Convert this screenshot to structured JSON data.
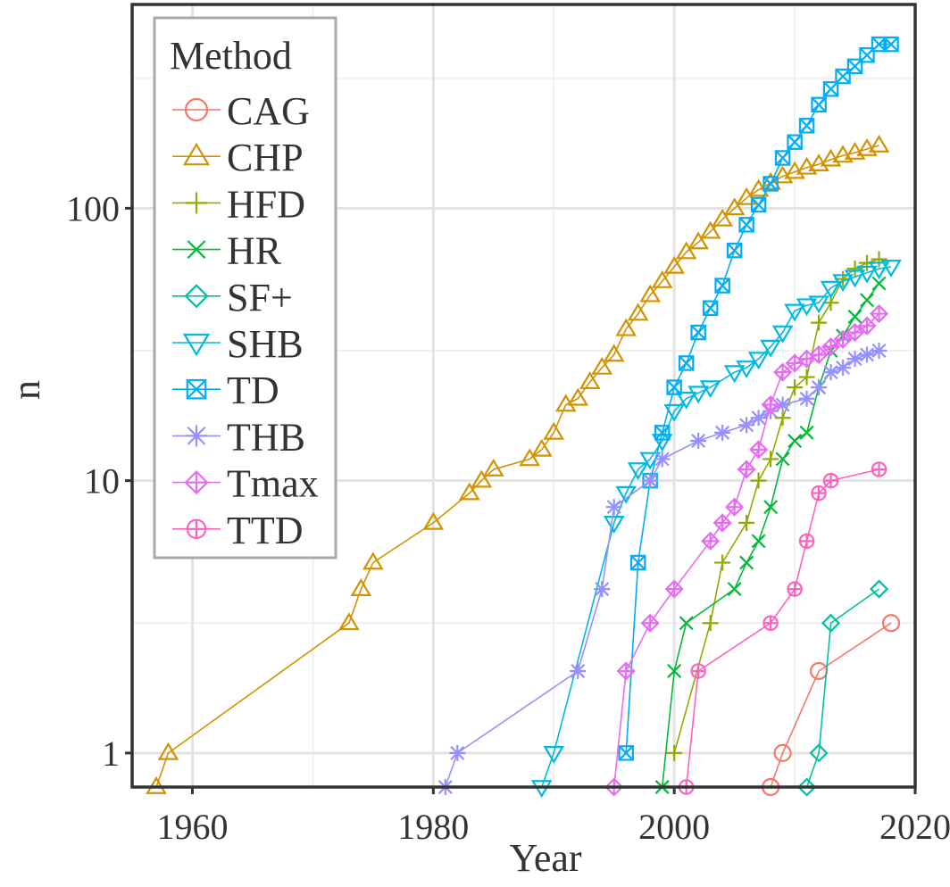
{
  "chart_data": {
    "type": "line",
    "xlabel": "Year",
    "ylabel": "n",
    "y_scale": "log",
    "xlim": [
      1955,
      2020
    ],
    "ylim": [
      0.75,
      560
    ],
    "x_ticks": [
      1960,
      1980,
      2000,
      2020
    ],
    "x_tick_labels": [
      "1960",
      "1980",
      "2000",
      "2020"
    ],
    "y_ticks": [
      1,
      10,
      100
    ],
    "y_tick_labels": [
      "1",
      "10",
      "100"
    ],
    "y_minor_ticks": [
      3,
      30,
      300
    ],
    "grid": true,
    "legend": {
      "title": "Method",
      "position": "top-left"
    },
    "series": [
      {
        "name": "CAG",
        "color": "#F8766D",
        "marker": "circle",
        "points": [
          [
            2008,
            0.75
          ],
          [
            2009,
            1
          ],
          [
            2012,
            2
          ],
          [
            2018,
            3
          ]
        ]
      },
      {
        "name": "CHP",
        "color": "#D39200",
        "marker": "triangle-up",
        "points": [
          [
            1957,
            0.75
          ],
          [
            1958,
            1
          ],
          [
            1973,
            3
          ],
          [
            1974,
            4
          ],
          [
            1975,
            5
          ],
          [
            1980,
            7
          ],
          [
            1983,
            9
          ],
          [
            1984,
            10
          ],
          [
            1985,
            11
          ],
          [
            1988,
            12
          ],
          [
            1989,
            13
          ],
          [
            1990,
            15
          ],
          [
            1991,
            19
          ],
          [
            1992,
            20
          ],
          [
            1993,
            23
          ],
          [
            1994,
            26
          ],
          [
            1995,
            29
          ],
          [
            1996,
            36
          ],
          [
            1997,
            41
          ],
          [
            1998,
            48
          ],
          [
            1999,
            54
          ],
          [
            2000,
            61
          ],
          [
            2001,
            69
          ],
          [
            2002,
            75
          ],
          [
            2003,
            82
          ],
          [
            2004,
            91
          ],
          [
            2005,
            100
          ],
          [
            2006,
            109
          ],
          [
            2007,
            117
          ],
          [
            2008,
            124
          ],
          [
            2009,
            131
          ],
          [
            2010,
            136
          ],
          [
            2011,
            141
          ],
          [
            2012,
            145
          ],
          [
            2013,
            151
          ],
          [
            2014,
            156
          ],
          [
            2015,
            160
          ],
          [
            2016,
            165
          ],
          [
            2017,
            170
          ]
        ]
      },
      {
        "name": "HFD",
        "color": "#93AA00",
        "marker": "plus",
        "points": [
          [
            2000,
            1
          ],
          [
            2003,
            3
          ],
          [
            2004,
            5
          ],
          [
            2006,
            7
          ],
          [
            2007,
            10
          ],
          [
            2008,
            12
          ],
          [
            2009,
            17
          ],
          [
            2010,
            22
          ],
          [
            2011,
            24
          ],
          [
            2012,
            38
          ],
          [
            2013,
            45
          ],
          [
            2014,
            55
          ],
          [
            2015,
            60
          ],
          [
            2016,
            63
          ],
          [
            2017,
            65
          ]
        ]
      },
      {
        "name": "HR",
        "color": "#00BA38",
        "marker": "x",
        "points": [
          [
            1999,
            0.75
          ],
          [
            2000,
            2
          ],
          [
            2001,
            3
          ],
          [
            2005,
            4
          ],
          [
            2006,
            5
          ],
          [
            2007,
            6
          ],
          [
            2008,
            8
          ],
          [
            2009,
            12
          ],
          [
            2010,
            14
          ],
          [
            2011,
            15
          ],
          [
            2012,
            22
          ],
          [
            2013,
            30
          ],
          [
            2014,
            34
          ],
          [
            2015,
            40
          ],
          [
            2016,
            46
          ],
          [
            2017,
            53
          ]
        ]
      },
      {
        "name": "SF+",
        "color": "#00C19F",
        "marker": "diamond",
        "points": [
          [
            2011,
            0.75
          ],
          [
            2012,
            1
          ],
          [
            2013,
            3
          ],
          [
            2017,
            4
          ]
        ]
      },
      {
        "name": "SHB",
        "color": "#00B9E3",
        "marker": "triangle-down",
        "points": [
          [
            1989,
            0.75
          ],
          [
            1990,
            1
          ],
          [
            1995,
            7
          ],
          [
            1996,
            9
          ],
          [
            1997,
            11
          ],
          [
            1998,
            12
          ],
          [
            1999,
            14
          ],
          [
            2000,
            18
          ],
          [
            2001,
            20
          ],
          [
            2002,
            21
          ],
          [
            2003,
            22
          ],
          [
            2005,
            25
          ],
          [
            2006,
            26
          ],
          [
            2007,
            28
          ],
          [
            2008,
            31
          ],
          [
            2009,
            35
          ],
          [
            2010,
            42
          ],
          [
            2011,
            44
          ],
          [
            2012,
            45
          ],
          [
            2013,
            51
          ],
          [
            2014,
            54
          ],
          [
            2015,
            56
          ],
          [
            2016,
            58
          ],
          [
            2017,
            60
          ],
          [
            2018,
            61
          ]
        ]
      },
      {
        "name": "TD",
        "color": "#00ADFA",
        "marker": "square-x",
        "points": [
          [
            1996,
            1
          ],
          [
            1997,
            5
          ],
          [
            1998,
            10
          ],
          [
            1999,
            15
          ],
          [
            2000,
            22
          ],
          [
            2001,
            27
          ],
          [
            2002,
            35
          ],
          [
            2003,
            43
          ],
          [
            2004,
            52
          ],
          [
            2005,
            70
          ],
          [
            2006,
            87
          ],
          [
            2007,
            103
          ],
          [
            2008,
            123
          ],
          [
            2009,
            153
          ],
          [
            2010,
            175
          ],
          [
            2011,
            201
          ],
          [
            2012,
            240
          ],
          [
            2013,
            274
          ],
          [
            2014,
            305
          ],
          [
            2015,
            332
          ],
          [
            2016,
            365
          ],
          [
            2017,
            400
          ],
          [
            2018,
            400
          ]
        ]
      },
      {
        "name": "THB",
        "color": "#9590FF",
        "marker": "asterisk",
        "points": [
          [
            1981,
            0.75
          ],
          [
            1982,
            1
          ],
          [
            1992,
            2
          ],
          [
            1994,
            4
          ],
          [
            1995,
            8
          ],
          [
            1998,
            10
          ],
          [
            1999,
            12
          ],
          [
            2002,
            14
          ],
          [
            2004,
            15
          ],
          [
            2006,
            16
          ],
          [
            2007,
            17
          ],
          [
            2008,
            18
          ],
          [
            2009,
            19
          ],
          [
            2011,
            20
          ],
          [
            2012,
            22
          ],
          [
            2013,
            25
          ],
          [
            2014,
            26
          ],
          [
            2015,
            28
          ],
          [
            2016,
            29
          ],
          [
            2017,
            30
          ]
        ]
      },
      {
        "name": "Tmax",
        "color": "#E76BF3",
        "marker": "diamond-plus",
        "points": [
          [
            1995,
            0.75
          ],
          [
            1996,
            2
          ],
          [
            1998,
            3
          ],
          [
            2000,
            4
          ],
          [
            2003,
            6
          ],
          [
            2004,
            7
          ],
          [
            2005,
            8
          ],
          [
            2006,
            11
          ],
          [
            2007,
            13
          ],
          [
            2008,
            19
          ],
          [
            2009,
            25
          ],
          [
            2010,
            27
          ],
          [
            2011,
            28
          ],
          [
            2012,
            29
          ],
          [
            2013,
            31
          ],
          [
            2014,
            33
          ],
          [
            2015,
            35
          ],
          [
            2016,
            37
          ],
          [
            2017,
            41
          ]
        ]
      },
      {
        "name": "TTD",
        "color": "#FF62BC",
        "marker": "circle-plus",
        "points": [
          [
            2001,
            0.75
          ],
          [
            2002,
            2
          ],
          [
            2008,
            3
          ],
          [
            2010,
            4
          ],
          [
            2011,
            6
          ],
          [
            2012,
            9
          ],
          [
            2013,
            10
          ],
          [
            2017,
            11
          ]
        ]
      }
    ]
  }
}
